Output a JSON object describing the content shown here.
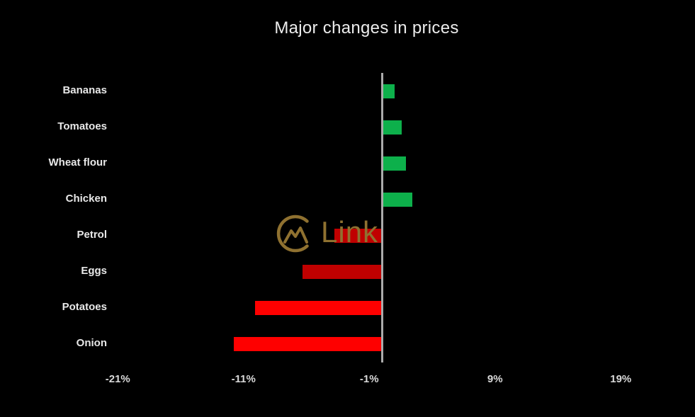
{
  "window": {
    "background_color": "#000000",
    "text_color": "#ECECEC"
  },
  "chart_data": {
    "type": "bar",
    "orientation": "horizontal",
    "title": "Major changes in prices",
    "categories": [
      "Bananas",
      "Tomatoes",
      "Wheat flour",
      "Chicken",
      "Petrol",
      "Eggs",
      "Potatoes",
      "Onion"
    ],
    "values": [
      1.0,
      1.6,
      1.9,
      2.4,
      -3.8,
      -6.3,
      -10.1,
      -11.8
    ],
    "unit": "%",
    "bar_colors": [
      "#0DB04B",
      "#0DB04B",
      "#0DB04B",
      "#0DB04B",
      "#C00000",
      "#C00000",
      "#FE0000",
      "#FE0000"
    ],
    "positive_color": "#0DB04B",
    "negative_dark_color": "#C00000",
    "negative_bright_color": "#FE0000",
    "x_ticks": [
      {
        "label": "-21%",
        "value": -21
      },
      {
        "label": "-11%",
        "value": -11
      },
      {
        "label": "-1%",
        "value": -1
      },
      {
        "label": "9%",
        "value": 9
      },
      {
        "label": "19%",
        "value": 19
      }
    ],
    "xlim": [
      -21,
      19
    ],
    "baseline_value": 0,
    "axis_line_color": "#ABABAB",
    "grid": false,
    "legend": false,
    "xlabel": "",
    "ylabel": ""
  },
  "watermark": {
    "text": "Link",
    "color": "#8F7130",
    "logo_icon": "mountain-circle-logo"
  }
}
